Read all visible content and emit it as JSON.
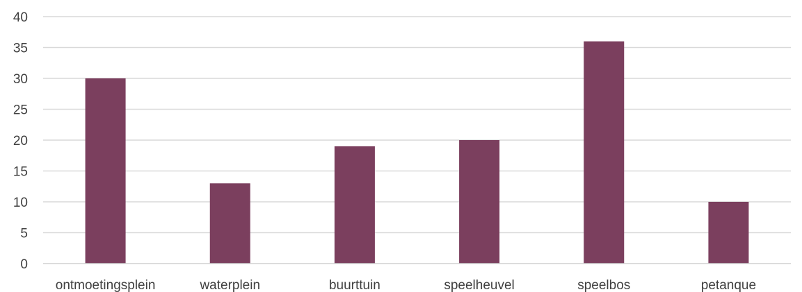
{
  "chart_data": {
    "type": "bar",
    "title": "",
    "xlabel": "",
    "ylabel": "",
    "categories": [
      "ontmoetingsplein",
      "waterplein",
      "buurttuin",
      "speelheuvel",
      "speelbos",
      "petanque"
    ],
    "values": [
      30,
      13,
      19,
      20,
      36,
      10
    ],
    "ylim": [
      0,
      40
    ],
    "yticks": [
      0,
      5,
      10,
      15,
      20,
      25,
      30,
      35,
      40
    ],
    "ytick_labels": [
      "0",
      "5",
      "10",
      "15",
      "20",
      "25",
      "30",
      "35",
      "40"
    ],
    "grid": true,
    "legend": "none",
    "bar_color": "#7b3f5e",
    "grid_color": "#d9d9d9",
    "text_color": "#404040"
  }
}
